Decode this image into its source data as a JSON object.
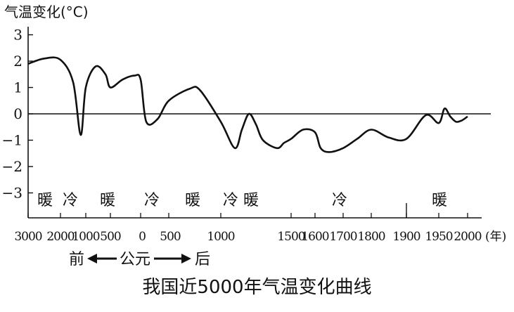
{
  "chart_data": {
    "type": "line",
    "title": "我国近5000年气温变化曲线",
    "ylabel": "气温变化(°C)",
    "xlabel": "(年)",
    "ylim": [
      -3.5,
      3.3
    ],
    "y_ticks": [
      "3",
      "2",
      "1",
      "0",
      "−1",
      "−2",
      "−3"
    ],
    "x_ticks": [
      "3000",
      "2000",
      "1000",
      "500",
      "0",
      "500",
      "1000",
      "1500",
      "1600",
      "1700",
      "1800",
      "1900",
      "1950",
      "2000"
    ],
    "era_axis": {
      "left": "前",
      "center": "公元",
      "right": "后"
    },
    "periods": [
      "暖",
      "冷",
      "暖",
      "冷",
      "暖",
      "冷",
      "暖",
      "冷",
      "暖"
    ],
    "reference_line": 0,
    "series": [
      {
        "values": [
          {
            "x": "3000 BC",
            "y": 1.9
          },
          {
            "x": "2500 BC",
            "y": 2.1
          },
          {
            "x": "2000 BC",
            "y": 2.05
          },
          {
            "x": "1500 BC",
            "y": 1.2
          },
          {
            "x": "1200 BC",
            "y": -0.8
          },
          {
            "x": "1000 BC",
            "y": 1.0
          },
          {
            "x": "800 BC",
            "y": 1.8
          },
          {
            "x": "600 BC",
            "y": 1.5
          },
          {
            "x": "500 BC",
            "y": 1.0
          },
          {
            "x": "300 BC",
            "y": 1.3
          },
          {
            "x": "100 BC",
            "y": 1.45
          },
          {
            "x": "0",
            "y": 1.3
          },
          {
            "x": "100",
            "y": -0.3
          },
          {
            "x": "300",
            "y": -0.2
          },
          {
            "x": "500",
            "y": 0.5
          },
          {
            "x": "700",
            "y": 0.95
          },
          {
            "x": "800",
            "y": 0.9
          },
          {
            "x": "1000",
            "y": -0.3
          },
          {
            "x": "1100",
            "y": -1.3
          },
          {
            "x": "1150",
            "y": -0.6
          },
          {
            "x": "1200",
            "y": 0.0
          },
          {
            "x": "1250",
            "y": -0.4
          },
          {
            "x": "1300",
            "y": -1.0
          },
          {
            "x": "1400",
            "y": -1.3
          },
          {
            "x": "1450",
            "y": -1.1
          },
          {
            "x": "1500",
            "y": -0.95
          },
          {
            "x": "1550",
            "y": -0.6
          },
          {
            "x": "1600",
            "y": -0.7
          },
          {
            "x": "1620",
            "y": -1.3
          },
          {
            "x": "1650",
            "y": -1.45
          },
          {
            "x": "1700",
            "y": -1.3
          },
          {
            "x": "1750",
            "y": -0.95
          },
          {
            "x": "1800",
            "y": -0.6
          },
          {
            "x": "1850",
            "y": -0.9
          },
          {
            "x": "1900",
            "y": -0.95
          },
          {
            "x": "1930",
            "y": -0.05
          },
          {
            "x": "1950",
            "y": -0.35
          },
          {
            "x": "1960",
            "y": 0.2
          },
          {
            "x": "1970",
            "y": -0.1
          },
          {
            "x": "1980",
            "y": -0.3
          },
          {
            "x": "1990",
            "y": -0.25
          },
          {
            "x": "2000",
            "y": -0.1
          }
        ]
      }
    ]
  }
}
